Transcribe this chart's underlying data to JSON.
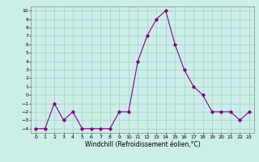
{
  "x": [
    0,
    1,
    2,
    3,
    4,
    5,
    6,
    7,
    8,
    9,
    10,
    11,
    12,
    13,
    14,
    15,
    16,
    17,
    18,
    19,
    20,
    21,
    22,
    23
  ],
  "y": [
    -4,
    -4,
    -1,
    -3,
    -2,
    -4,
    -4,
    -4,
    -4,
    -2,
    -2,
    4,
    7,
    9,
    10,
    6,
    3,
    1,
    0,
    -2,
    -2,
    -2,
    -3,
    -2
  ],
  "xlabel": "Windchill (Refroidissement éolien,°C)",
  "xlim": [
    -0.5,
    23.5
  ],
  "ylim": [
    -4.5,
    10.5
  ],
  "yticks": [
    -4,
    -3,
    -2,
    -1,
    0,
    1,
    2,
    3,
    4,
    5,
    6,
    7,
    8,
    9,
    10
  ],
  "xticks": [
    0,
    1,
    2,
    3,
    4,
    5,
    6,
    7,
    8,
    9,
    10,
    11,
    12,
    13,
    14,
    15,
    16,
    17,
    18,
    19,
    20,
    21,
    22,
    23
  ],
  "line_color": "#880088",
  "marker": "D",
  "marker_size": 1.8,
  "line_width": 0.8,
  "bg_color": "#cceee8",
  "grid_color": "#aacccc",
  "tick_fontsize": 4.5,
  "label_fontsize": 5.5
}
